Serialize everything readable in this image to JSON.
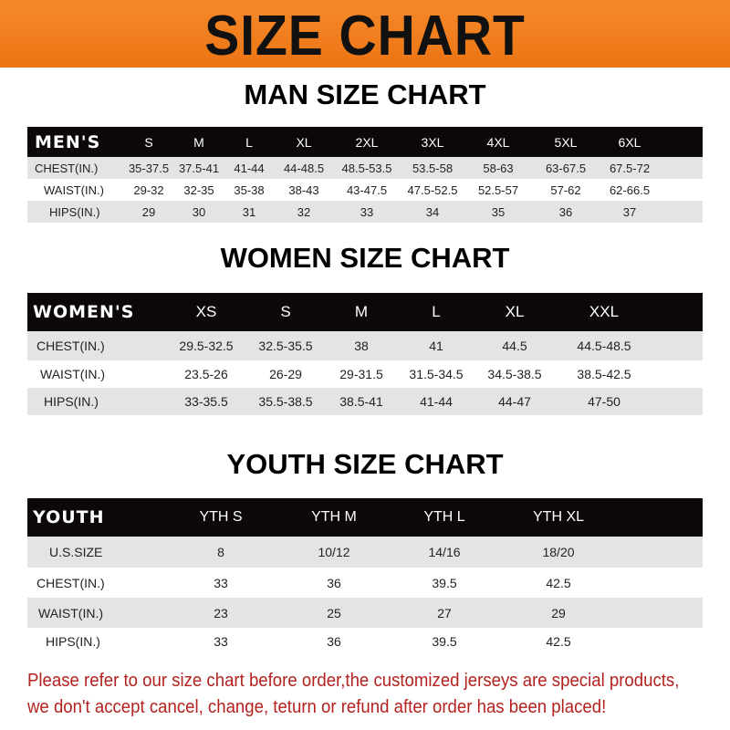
{
  "banner": {
    "title": "SIZE CHART",
    "color": "#f07d1c"
  },
  "men": {
    "title": "MAN SIZE CHART",
    "header": [
      "MEN'S",
      "S",
      "M",
      "L",
      "XL",
      "2XL",
      "3XL",
      "4XL",
      "5XL",
      "6XL"
    ],
    "rows": [
      [
        "CHEST(IN.)",
        "35-37.5",
        "37.5-41",
        "41-44",
        "44-48.5",
        "48.5-53.5",
        "53.5-58",
        "58-63",
        "63-67.5",
        "67.5-72"
      ],
      [
        "WAIST(IN.)",
        "29-32",
        "32-35",
        "35-38",
        "38-43",
        "43-47.5",
        "47.5-52.5",
        "52.5-57",
        "57-62",
        "62-66.5"
      ],
      [
        "HIPS(IN.)",
        "29",
        "30",
        "31",
        "32",
        "33",
        "34",
        "35",
        "36",
        "37"
      ]
    ]
  },
  "women": {
    "title": "WOMEN SIZE CHART",
    "header": [
      "WOMEN'S",
      "XS",
      "S",
      "M",
      "L",
      "XL",
      "XXL"
    ],
    "rows": [
      [
        "CHEST(IN.)",
        "29.5-32.5",
        "32.5-35.5",
        "38",
        "41",
        "44.5",
        "44.5-48.5"
      ],
      [
        "WAIST(IN.)",
        "23.5-26",
        "26-29",
        "29-31.5",
        "31.5-34.5",
        "34.5-38.5",
        "38.5-42.5"
      ],
      [
        "HIPS(IN.)",
        "33-35.5",
        "35.5-38.5",
        "38.5-41",
        "41-44",
        "44-47",
        "47-50"
      ]
    ]
  },
  "youth": {
    "title": "YOUTH SIZE CHART",
    "header": [
      "YOUTH",
      "YTH S",
      "YTH M",
      "YTH L",
      "YTH XL"
    ],
    "rows": [
      [
        "U.S.SIZE",
        "8",
        "10/12",
        "14/16",
        "18/20"
      ],
      [
        "CHEST(IN.)",
        "33",
        "36",
        "39.5",
        "42.5"
      ],
      [
        "WAIST(IN.)",
        "23",
        "25",
        "27",
        "29"
      ],
      [
        "HIPS(IN.)",
        "33",
        "36",
        "39.5",
        "42.5"
      ]
    ]
  },
  "notice": {
    "line1": "Please refer to our size chart before order,the customized jerseys are special products,",
    "line2": "we don't accept cancel, change, teturn or refund after order has been placed!",
    "color": "#b3221f"
  }
}
